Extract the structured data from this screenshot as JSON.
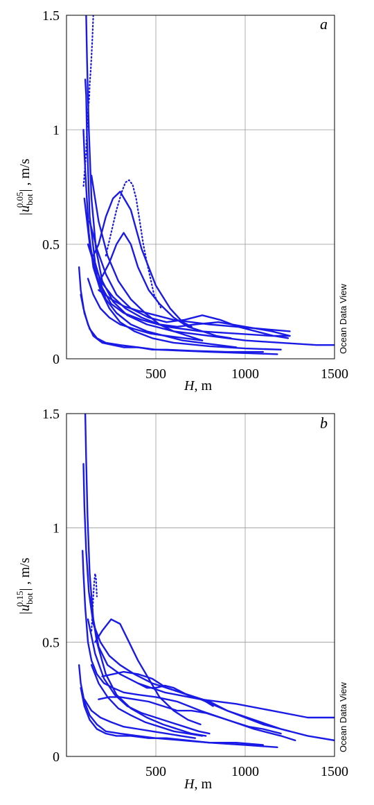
{
  "chart_data": [
    {
      "type": "line",
      "panel_label": "a",
      "xlabel_var": "H",
      "xlabel_unit": ", m",
      "ylabel_base": "|u",
      "ylabel_sub": "bot",
      "ylabel_sup": "0.05",
      "ylabel_tail": "|  , m/s",
      "watermark": "Ocean Data View",
      "xlim": [
        0,
        1500
      ],
      "ylim": [
        0,
        1.5
      ],
      "xticks": [
        500,
        1000,
        1500
      ],
      "yticks": [
        0,
        0.5,
        1,
        1.5
      ],
      "xtick_labels": [
        "500",
        "1000",
        "1500"
      ],
      "ytick_labels": [
        "0",
        "0.5",
        "1",
        "1.5"
      ],
      "series": [
        {
          "x": [
            110,
            115,
            125,
            140,
            165,
            200,
            260,
            340,
            450,
            600,
            800,
            1000,
            1200,
            1400,
            1500
          ],
          "y": [
            1.5,
            1.3,
            1.0,
            0.7,
            0.48,
            0.34,
            0.25,
            0.19,
            0.15,
            0.12,
            0.1,
            0.08,
            0.07,
            0.06,
            0.06
          ]
        },
        {
          "x": [
            105,
            110,
            115,
            130,
            160,
            200,
            250,
            320,
            420,
            560,
            750,
            950,
            1150,
            1250
          ],
          "y": [
            1.22,
            1.15,
            0.95,
            0.62,
            0.42,
            0.31,
            0.24,
            0.2,
            0.17,
            0.14,
            0.12,
            0.11,
            0.1,
            0.1
          ]
        },
        {
          "x": [
            95,
            100,
            110,
            125,
            150,
            190,
            240,
            300,
            380,
            480,
            600,
            800,
            1000,
            1200
          ],
          "y": [
            1.0,
            0.9,
            0.75,
            0.55,
            0.4,
            0.3,
            0.22,
            0.16,
            0.12,
            0.09,
            0.07,
            0.055,
            0.045,
            0.04
          ]
        },
        {
          "x": [
            70,
            80,
            100,
            130,
            170,
            220,
            300,
            400,
            500,
            650,
            800,
            1000,
            1180
          ],
          "y": [
            0.4,
            0.3,
            0.2,
            0.13,
            0.09,
            0.07,
            0.06,
            0.05,
            0.04,
            0.035,
            0.03,
            0.025,
            0.02
          ]
        },
        {
          "x": [
            80,
            95,
            120,
            150,
            200,
            260,
            320,
            400,
            480,
            560,
            700,
            900,
            1100
          ],
          "y": [
            0.28,
            0.22,
            0.15,
            0.1,
            0.07,
            0.06,
            0.05,
            0.05,
            0.04,
            0.04,
            0.035,
            0.03,
            0.03
          ]
        },
        {
          "x": [
            150,
            180,
            220,
            260,
            300,
            360,
            420,
            500,
            580,
            650,
            700
          ],
          "y": [
            0.45,
            0.5,
            0.62,
            0.7,
            0.73,
            0.65,
            0.48,
            0.32,
            0.22,
            0.16,
            0.14
          ]
        },
        {
          "x": [
            200,
            240,
            280,
            320,
            360,
            400,
            460,
            520,
            600,
            680,
            760,
            840,
            920
          ],
          "y": [
            0.36,
            0.42,
            0.5,
            0.55,
            0.5,
            0.4,
            0.3,
            0.24,
            0.18,
            0.14,
            0.12,
            0.1,
            0.09
          ]
        },
        {
          "x": [
            180,
            250,
            320,
            400,
            500,
            600,
            700,
            800,
            950,
            1100,
            1250
          ],
          "y": [
            0.3,
            0.26,
            0.23,
            0.21,
            0.19,
            0.17,
            0.16,
            0.15,
            0.14,
            0.13,
            0.12
          ]
        },
        {
          "x": [
            120,
            160,
            200,
            260,
            330,
            420,
            520,
            620,
            720,
            850,
            1000,
            1150,
            1250
          ],
          "y": [
            0.5,
            0.4,
            0.33,
            0.27,
            0.22,
            0.18,
            0.15,
            0.14,
            0.15,
            0.16,
            0.14,
            0.12,
            0.1
          ]
        },
        {
          "x": [
            130,
            170,
            220,
            280,
            360,
            460,
            560,
            660,
            760,
            860,
            960,
            1060,
            1160,
            1240
          ],
          "y": [
            0.6,
            0.48,
            0.37,
            0.28,
            0.22,
            0.18,
            0.16,
            0.17,
            0.19,
            0.17,
            0.14,
            0.12,
            0.1,
            0.09
          ]
        },
        {
          "x": [
            140,
            180,
            230,
            290,
            360,
            440,
            520,
            600,
            680,
            760
          ],
          "y": [
            0.8,
            0.6,
            0.45,
            0.34,
            0.26,
            0.2,
            0.15,
            0.12,
            0.1,
            0.08
          ]
        },
        {
          "x": [
            100,
            130,
            170,
            220,
            280,
            360,
            450,
            550,
            650,
            750,
            850,
            950
          ],
          "y": [
            0.7,
            0.5,
            0.36,
            0.26,
            0.2,
            0.15,
            0.12,
            0.1,
            0.08,
            0.07,
            0.06,
            0.05
          ]
        },
        {
          "x": [
            120,
            150,
            190,
            240,
            300,
            380,
            470,
            560,
            660,
            760
          ],
          "y": [
            0.35,
            0.28,
            0.22,
            0.18,
            0.15,
            0.13,
            0.11,
            0.1,
            0.09,
            0.08
          ]
        }
      ],
      "dotted_series": [
        {
          "x": [
            150,
            145,
            140,
            135,
            130,
            128,
            125,
            122,
            120,
            118,
            115,
            112,
            110,
            105,
            100,
            95
          ],
          "y": [
            1.5,
            1.4,
            1.32,
            1.25,
            1.2,
            1.15,
            1.12,
            1.1,
            1.08,
            1.05,
            1.0,
            0.95,
            0.9,
            0.85,
            0.8,
            0.75
          ]
        },
        {
          "x": [
            220,
            250,
            280,
            310,
            330,
            350,
            370,
            390,
            410,
            430,
            450,
            470,
            490,
            510,
            530
          ],
          "y": [
            0.45,
            0.55,
            0.65,
            0.73,
            0.77,
            0.78,
            0.76,
            0.7,
            0.6,
            0.5,
            0.42,
            0.35,
            0.28,
            0.25,
            0.22
          ]
        }
      ]
    },
    {
      "type": "line",
      "panel_label": "b",
      "xlabel_var": "H",
      "xlabel_unit": ", m",
      "ylabel_base": "|u",
      "ylabel_sub": "bot",
      "ylabel_sup": "0.15",
      "ylabel_tail": "|  , m/s",
      "watermark": "Ocean Data View",
      "xlim": [
        0,
        1500
      ],
      "ylim": [
        0,
        1.5
      ],
      "xticks": [
        500,
        1000,
        1500
      ],
      "yticks": [
        0,
        0.5,
        1,
        1.5
      ],
      "xtick_labels": [
        "500",
        "1000",
        "1500"
      ],
      "ytick_labels": [
        "0",
        "0.5",
        "1",
        "1.5"
      ],
      "series": [
        {
          "x": [
            105,
            110,
            118,
            130,
            150,
            180,
            230,
            300,
            400,
            550,
            750,
            950,
            1150,
            1350,
            1500
          ],
          "y": [
            1.5,
            1.3,
            1.05,
            0.8,
            0.6,
            0.48,
            0.4,
            0.36,
            0.32,
            0.28,
            0.25,
            0.23,
            0.2,
            0.17,
            0.17
          ]
        },
        {
          "x": [
            95,
            100,
            110,
            125,
            150,
            190,
            240,
            300,
            380,
            480,
            600,
            750,
            900,
            1050,
            1200,
            1350,
            1500
          ],
          "y": [
            1.28,
            1.1,
            0.9,
            0.72,
            0.58,
            0.5,
            0.44,
            0.4,
            0.36,
            0.32,
            0.29,
            0.25,
            0.2,
            0.16,
            0.12,
            0.09,
            0.07
          ]
        },
        {
          "x": [
            90,
            95,
            105,
            120,
            140,
            170,
            210,
            260,
            320,
            400,
            500,
            620,
            750,
            900,
            1050,
            1200,
            1280
          ],
          "y": [
            0.9,
            0.8,
            0.65,
            0.5,
            0.42,
            0.36,
            0.32,
            0.3,
            0.28,
            0.27,
            0.26,
            0.24,
            0.2,
            0.16,
            0.12,
            0.09,
            0.07
          ]
        },
        {
          "x": [
            70,
            80,
            100,
            130,
            170,
            220,
            300,
            400,
            500,
            650,
            800,
            1000,
            1180
          ],
          "y": [
            0.4,
            0.32,
            0.24,
            0.18,
            0.14,
            0.11,
            0.1,
            0.09,
            0.08,
            0.07,
            0.06,
            0.05,
            0.04
          ]
        },
        {
          "x": [
            80,
            100,
            130,
            170,
            220,
            280,
            360,
            460,
            560,
            680,
            800,
            950,
            1100
          ],
          "y": [
            0.3,
            0.22,
            0.16,
            0.12,
            0.1,
            0.09,
            0.09,
            0.08,
            0.08,
            0.07,
            0.06,
            0.06,
            0.05
          ]
        },
        {
          "x": [
            160,
            200,
            250,
            300,
            350,
            400,
            460,
            520,
            600,
            680,
            750
          ],
          "y": [
            0.5,
            0.55,
            0.6,
            0.58,
            0.5,
            0.42,
            0.34,
            0.26,
            0.2,
            0.16,
            0.14
          ]
        },
        {
          "x": [
            200,
            260,
            320,
            400,
            480,
            560,
            640,
            720,
            800,
            900,
            1000,
            1100,
            1200,
            1250
          ],
          "y": [
            0.35,
            0.36,
            0.37,
            0.36,
            0.34,
            0.3,
            0.28,
            0.26,
            0.24,
            0.2,
            0.17,
            0.14,
            0.12,
            0.11
          ]
        },
        {
          "x": [
            180,
            240,
            300,
            380,
            460,
            540,
            620,
            700,
            780,
            860,
            940,
            1020,
            1100,
            1200
          ],
          "y": [
            0.25,
            0.26,
            0.26,
            0.25,
            0.24,
            0.22,
            0.2,
            0.2,
            0.19,
            0.17,
            0.15,
            0.13,
            0.12,
            0.1
          ]
        },
        {
          "x": [
            120,
            160,
            210,
            270,
            340,
            420,
            500,
            580,
            660,
            740,
            800
          ],
          "y": [
            0.6,
            0.45,
            0.34,
            0.27,
            0.22,
            0.19,
            0.17,
            0.15,
            0.13,
            0.11,
            0.1
          ]
        },
        {
          "x": [
            130,
            170,
            220,
            280,
            360,
            450,
            540,
            620,
            700,
            780
          ],
          "y": [
            0.7,
            0.5,
            0.36,
            0.27,
            0.21,
            0.17,
            0.14,
            0.12,
            0.1,
            0.09
          ]
        },
        {
          "x": [
            140,
            180,
            230,
            290,
            360,
            440,
            520,
            600,
            680,
            760
          ],
          "y": [
            0.4,
            0.32,
            0.26,
            0.21,
            0.18,
            0.15,
            0.13,
            0.11,
            0.1,
            0.09
          ]
        },
        {
          "x": [
            100,
            140,
            190,
            250,
            320,
            400,
            480,
            560,
            640,
            720
          ],
          "y": [
            0.25,
            0.2,
            0.17,
            0.15,
            0.13,
            0.12,
            0.11,
            0.1,
            0.09,
            0.08
          ]
        },
        {
          "x": [
            400,
            450,
            500,
            550,
            600,
            650,
            700,
            760,
            820
          ],
          "y": [
            0.32,
            0.3,
            0.3,
            0.31,
            0.3,
            0.28,
            0.26,
            0.25,
            0.22
          ]
        }
      ],
      "dotted_series": [
        {
          "x": [
            140,
            145,
            150,
            155,
            160,
            165,
            170
          ],
          "y": [
            0.55,
            0.62,
            0.7,
            0.76,
            0.8,
            0.78,
            0.7
          ]
        }
      ]
    }
  ]
}
